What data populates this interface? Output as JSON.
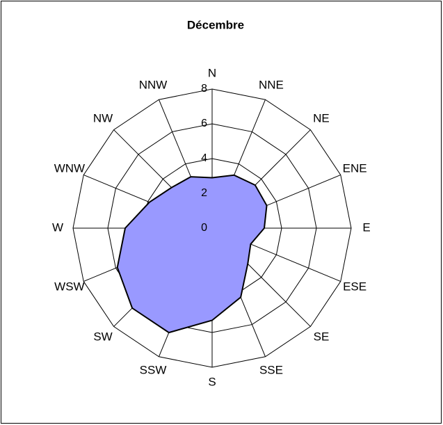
{
  "chart_data": {
    "type": "radar",
    "title": "Décembre",
    "categories": [
      "N",
      "NNE",
      "NE",
      "ENE",
      "E",
      "ESE",
      "SE",
      "SSE",
      "S",
      "SSW",
      "SW",
      "WSW",
      "W",
      "WNW",
      "NW",
      "NNW"
    ],
    "series": [
      {
        "color": "#9999ff",
        "values": [
          2.9,
          3.3,
          3.5,
          3.4,
          3.0,
          2.4,
          2.9,
          4.3,
          5.3,
          6.5,
          6.5,
          5.9,
          5.0,
          3.9,
          3.3,
          3.2
        ]
      }
    ],
    "ylim": [
      0,
      8
    ],
    "yticks": [
      0,
      2,
      4,
      6,
      8
    ],
    "grid": true
  }
}
